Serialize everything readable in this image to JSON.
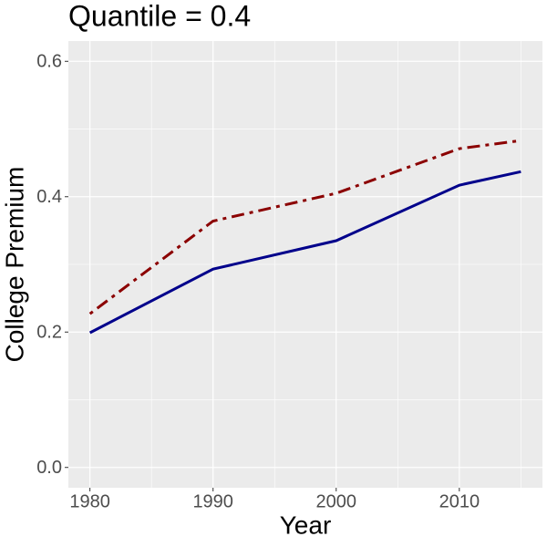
{
  "chart_data": {
    "type": "line",
    "title": "Quantile = 0.4",
    "x_label": "Year",
    "y_label": "College Premium",
    "x": [
      1980,
      1990,
      2000,
      2010,
      2015
    ],
    "series": [
      {
        "color": "#00008b",
        "dash": "solid",
        "values": [
          0.199,
          0.293,
          0.335,
          0.417,
          0.437
        ]
      },
      {
        "color": "#8b0000",
        "dash": "dotdash",
        "values": [
          0.227,
          0.364,
          0.405,
          0.471,
          0.483
        ]
      }
    ],
    "xlim": [
      1978.25,
      2016.75
    ],
    "xticks": [
      1980,
      1990,
      2000,
      2010
    ],
    "ylim": [
      -0.03,
      0.63
    ],
    "yticks": [
      {
        "value": 0,
        "label": "0.0"
      },
      0.2,
      0.4,
      0.6
    ],
    "x_minor_grid": [
      1985,
      1995,
      2005,
      2015
    ],
    "y_minor_grid": [
      0.1,
      0.3,
      0.5
    ],
    "grid": true,
    "panel_color": "#ebebeb"
  }
}
